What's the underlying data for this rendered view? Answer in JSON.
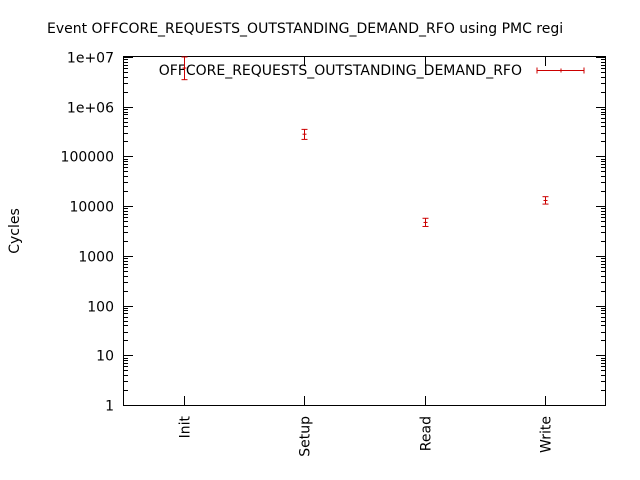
{
  "chart_data": {
    "type": "scatter",
    "title": "Event OFFCORE_REQUESTS_OUTSTANDING_DEMAND_RFO using PMC regi",
    "ylabel": "Cycles",
    "xlabel": "",
    "y_scale": "log",
    "ylim": [
      1,
      10000000
    ],
    "y_ticks": [
      {
        "value": 1,
        "label": "1"
      },
      {
        "value": 10,
        "label": "10"
      },
      {
        "value": 100,
        "label": "100"
      },
      {
        "value": 1000,
        "label": "1000"
      },
      {
        "value": 10000,
        "label": "10000"
      },
      {
        "value": 100000,
        "label": "100000"
      },
      {
        "value": 1000000,
        "label": "1e+06"
      },
      {
        "value": 10000000,
        "label": "1e+07"
      }
    ],
    "categories": [
      "Init",
      "Setup",
      "Read",
      "Write"
    ],
    "legend_position": "top-right",
    "grid": false,
    "series": [
      {
        "name": "OFFCORE_REQUESTS_OUTSTANDING_DEMAND_RFO",
        "color": "#cc0000",
        "points": [
          {
            "category": "Init",
            "y": 6000000,
            "ylow": 3500000,
            "yhigh": 10000000
          },
          {
            "category": "Setup",
            "y": 280000,
            "ylow": 220000,
            "yhigh": 350000
          },
          {
            "category": "Read",
            "y": 4700,
            "ylow": 3900,
            "yhigh": 5700
          },
          {
            "category": "Write",
            "y": 13000,
            "ylow": 11000,
            "yhigh": 15500
          }
        ]
      }
    ]
  }
}
